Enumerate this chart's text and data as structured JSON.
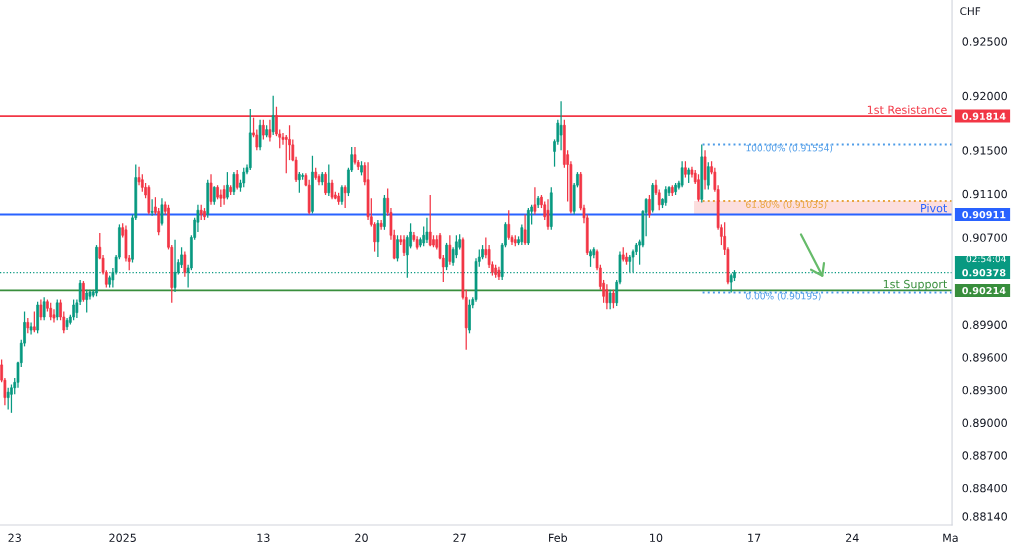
{
  "chart_data": {
    "type": "candlestick",
    "ylabel": "CHF",
    "categories": [
      null,
      null,
      null,
      null,
      "23",
      null,
      null,
      null,
      null,
      null,
      null,
      null,
      null,
      null,
      null,
      null,
      null,
      null,
      null,
      null,
      null,
      null,
      null,
      null,
      null,
      null,
      null,
      null,
      null,
      null,
      null,
      null,
      null,
      null,
      null,
      null,
      null,
      "2025",
      null,
      null,
      null,
      null,
      null,
      null,
      null,
      null,
      null,
      null,
      null,
      null,
      null,
      null,
      null,
      null,
      null,
      null,
      null,
      null,
      null,
      null,
      null,
      null,
      null,
      null,
      null,
      null,
      null,
      null,
      null,
      null,
      null,
      null,
      null,
      null,
      null,
      null,
      null,
      null,
      null,
      null,
      "13",
      null,
      null,
      null,
      null,
      null,
      null,
      null,
      null,
      null,
      null,
      null,
      null,
      null,
      null,
      null,
      null,
      null,
      null,
      null,
      null,
      null,
      null,
      null,
      null,
      null,
      null,
      null,
      null,
      null,
      "20",
      null,
      null,
      null,
      null,
      null,
      null,
      null,
      null,
      null,
      null,
      null,
      null,
      null,
      null,
      null,
      null,
      null,
      null,
      null,
      null,
      null,
      null,
      null,
      null,
      null,
      null,
      null,
      null,
      null,
      "27",
      null,
      null,
      null,
      null,
      null,
      null,
      null,
      null,
      null,
      null,
      null,
      null,
      null,
      null,
      null,
      null,
      null,
      null,
      null,
      null,
      null,
      null,
      null,
      null,
      null,
      null,
      null,
      null,
      null,
      "Feb",
      null,
      null,
      null,
      null,
      null,
      null,
      null,
      null,
      null,
      null,
      null,
      null,
      null,
      null,
      null,
      null,
      null,
      null,
      null,
      null,
      null,
      null,
      null,
      null,
      null,
      null,
      null,
      null,
      null,
      "10",
      null,
      null,
      null,
      null,
      null,
      null,
      null,
      null,
      null,
      null,
      null,
      null,
      null,
      null,
      null,
      null,
      null,
      null,
      null,
      null,
      null,
      null,
      null,
      null,
      null,
      null,
      null,
      null,
      null,
      "17",
      null,
      null,
      null,
      null,
      null,
      null,
      null,
      null,
      null,
      null,
      null,
      null,
      null,
      null,
      null,
      null,
      null,
      null,
      null,
      null,
      null,
      null,
      null,
      null,
      null,
      null,
      null,
      null,
      null,
      "24",
      null,
      null,
      null,
      null,
      null,
      null,
      null,
      null,
      null,
      null,
      null,
      null,
      null,
      null,
      null,
      null,
      null,
      null,
      null,
      null,
      null,
      null,
      null,
      null,
      null,
      null,
      null,
      null,
      null,
      "Ma"
    ],
    "ohlc": [
      [
        0.8953,
        0.8958,
        0.8937,
        0.8939
      ],
      [
        0.8939,
        0.8941,
        0.8916,
        0.8923
      ],
      [
        0.8923,
        0.8932,
        0.8912,
        0.8928
      ],
      [
        0.8926,
        0.8935,
        0.8909,
        0.8932
      ],
      [
        0.8932,
        0.8941,
        0.8926,
        0.8937
      ],
      [
        0.8937,
        0.8956,
        0.8932,
        0.8955
      ],
      [
        0.8955,
        0.8976,
        0.8951,
        0.8973
      ],
      [
        0.8973,
        0.9002,
        0.897,
        0.8992
      ],
      [
        0.8992,
        0.8996,
        0.8982,
        0.8987
      ],
      [
        0.8985,
        0.8992,
        0.8981,
        0.8988
      ],
      [
        0.8988,
        0.9002,
        0.8983,
        0.8985
      ],
      [
        0.8985,
        0.9011,
        0.8982,
        0.9008
      ],
      [
        0.9008,
        0.9013,
        0.8994,
        0.8997
      ],
      [
        0.8997,
        0.9015,
        0.8994,
        0.9011
      ],
      [
        0.9011,
        0.9013,
        0.9002,
        0.9005
      ],
      [
        0.9005,
        0.901,
        0.8994,
        0.8997
      ],
      [
        0.8999,
        0.9004,
        0.8992,
        0.8996
      ],
      [
        0.8997,
        0.9013,
        0.8994,
        0.901
      ],
      [
        0.901,
        0.9013,
        0.8994,
        0.8997
      ],
      [
        0.8997,
        0.9002,
        0.8982,
        0.8985
      ],
      [
        0.8988,
        0.8996,
        0.8985,
        0.8994
      ],
      [
        0.8992,
        0.8999,
        0.899,
        0.8997
      ],
      [
        0.8997,
        0.9013,
        0.8994,
        0.9008
      ],
      [
        0.9001,
        0.9013,
        0.8996,
        0.901
      ],
      [
        0.9011,
        0.9031,
        0.9008,
        0.9028
      ],
      [
        0.9028,
        0.903,
        0.9011,
        0.9013
      ],
      [
        0.9013,
        0.9022,
        0.9001,
        0.9019
      ],
      [
        0.9016,
        0.9022,
        0.9013,
        0.902
      ],
      [
        0.9017,
        0.9022,
        0.9015,
        0.902
      ],
      [
        0.9019,
        0.9063,
        0.9016,
        0.9061
      ],
      [
        0.9061,
        0.9074,
        0.905,
        0.9051
      ],
      [
        0.9051,
        0.9054,
        0.9036,
        0.9038
      ],
      [
        0.9038,
        0.904,
        0.9024,
        0.9027
      ],
      [
        0.9027,
        0.9035,
        0.9024,
        0.9033
      ],
      [
        0.9031,
        0.9042,
        0.9024,
        0.9038
      ],
      [
        0.9038,
        0.9054,
        0.9036,
        0.9052
      ],
      [
        0.9052,
        0.9082,
        0.905,
        0.9079
      ],
      [
        0.9079,
        0.9083,
        0.907,
        0.9072
      ],
      [
        0.9077,
        0.9081,
        0.9048,
        0.9051
      ],
      [
        0.9051,
        0.9054,
        0.904,
        0.9048
      ],
      [
        0.905,
        0.9091,
        0.9047,
        0.9088
      ],
      [
        0.9088,
        0.9137,
        0.9086,
        0.9125
      ],
      [
        0.9125,
        0.9135,
        0.9118,
        0.9121
      ],
      [
        0.9123,
        0.9128,
        0.9112,
        0.9116
      ],
      [
        0.9116,
        0.912,
        0.9106,
        0.9109
      ],
      [
        0.9116,
        0.9118,
        0.9091,
        0.9093
      ],
      [
        0.9093,
        0.9105,
        0.909,
        0.9094
      ],
      [
        0.9098,
        0.9107,
        0.9091,
        0.9093
      ],
      [
        0.9094,
        0.9097,
        0.9072,
        0.9075
      ],
      [
        0.9083,
        0.9106,
        0.9081,
        0.91
      ],
      [
        0.91,
        0.9103,
        0.9091,
        0.9094
      ],
      [
        0.9097,
        0.91,
        0.9059,
        0.9061
      ],
      [
        0.9061,
        0.9063,
        0.901,
        0.9024
      ],
      [
        0.9024,
        0.9068,
        0.902,
        0.9038
      ],
      [
        0.9038,
        0.905,
        0.9036,
        0.9047
      ],
      [
        0.9045,
        0.9061,
        0.9042,
        0.9054
      ],
      [
        0.9054,
        0.9057,
        0.9034,
        0.9038
      ],
      [
        0.9038,
        0.9045,
        0.9024,
        0.9042
      ],
      [
        0.9042,
        0.9072,
        0.904,
        0.907
      ],
      [
        0.907,
        0.9088,
        0.9068,
        0.9086
      ],
      [
        0.9084,
        0.91,
        0.9075,
        0.9095
      ],
      [
        0.9095,
        0.91,
        0.9086,
        0.9091
      ],
      [
        0.9094,
        0.9097,
        0.9086,
        0.9089
      ],
      [
        0.9091,
        0.9123,
        0.9088,
        0.912
      ],
      [
        0.912,
        0.9128,
        0.91,
        0.9103
      ],
      [
        0.9103,
        0.9117,
        0.91,
        0.9116
      ],
      [
        0.9116,
        0.9118,
        0.9105,
        0.9107
      ],
      [
        0.9109,
        0.9114,
        0.9098,
        0.9106
      ],
      [
        0.9114,
        0.9118,
        0.91,
        0.9106
      ],
      [
        0.9107,
        0.913,
        0.9105,
        0.9118
      ],
      [
        0.9116,
        0.9118,
        0.9109,
        0.9112
      ],
      [
        0.9112,
        0.913,
        0.9109,
        0.9128
      ],
      [
        0.9128,
        0.9132,
        0.9114,
        0.9116
      ],
      [
        0.9116,
        0.9123,
        0.9112,
        0.912
      ],
      [
        0.912,
        0.9134,
        0.9116,
        0.913
      ],
      [
        0.913,
        0.9137,
        0.9128,
        0.9134
      ],
      [
        0.9134,
        0.9188,
        0.9132,
        0.9166
      ],
      [
        0.9166,
        0.918,
        0.9162,
        0.9164
      ],
      [
        0.9164,
        0.9169,
        0.915,
        0.9153
      ],
      [
        0.9153,
        0.9178,
        0.915,
        0.9173
      ],
      [
        0.9173,
        0.9178,
        0.916,
        0.9164
      ],
      [
        0.9164,
        0.9173,
        0.9162,
        0.9169
      ],
      [
        0.9169,
        0.9178,
        0.9158,
        0.9162
      ],
      [
        0.9167,
        0.92,
        0.9164,
        0.9182
      ],
      [
        0.9182,
        0.919,
        0.9163,
        0.9165
      ],
      [
        0.9165,
        0.9169,
        0.9152,
        0.9162
      ],
      [
        0.9162,
        0.9166,
        0.9155,
        0.916
      ],
      [
        0.9162,
        0.9164,
        0.9129,
        0.916
      ],
      [
        0.916,
        0.9173,
        0.9141,
        0.9155
      ],
      [
        0.9155,
        0.916,
        0.914,
        0.9141
      ],
      [
        0.9141,
        0.9144,
        0.9121,
        0.9123
      ],
      [
        0.9123,
        0.913,
        0.9111,
        0.9128
      ],
      [
        0.9126,
        0.9129,
        0.9123,
        0.9127
      ],
      [
        0.9127,
        0.9129,
        0.9117,
        0.9118
      ],
      [
        0.9118,
        0.9123,
        0.9091,
        0.9093
      ],
      [
        0.9094,
        0.9145,
        0.9092,
        0.913
      ],
      [
        0.913,
        0.9134,
        0.9123,
        0.9125
      ],
      [
        0.9126,
        0.9128,
        0.9118,
        0.9121
      ],
      [
        0.9121,
        0.913,
        0.9118,
        0.9128
      ],
      [
        0.9128,
        0.913,
        0.9109,
        0.9111
      ],
      [
        0.9111,
        0.9137,
        0.9108,
        0.912
      ],
      [
        0.912,
        0.9123,
        0.9105,
        0.9107
      ],
      [
        0.9109,
        0.9112,
        0.9105,
        0.9106
      ],
      [
        0.9108,
        0.9111,
        0.91,
        0.9103
      ],
      [
        0.9103,
        0.9118,
        0.91,
        0.9116
      ],
      [
        0.9116,
        0.9118,
        0.9097,
        0.9111
      ],
      [
        0.9111,
        0.9134,
        0.9108,
        0.9132
      ],
      [
        0.9132,
        0.9153,
        0.913,
        0.9146
      ],
      [
        0.9146,
        0.9153,
        0.9137,
        0.9139
      ],
      [
        0.9139,
        0.9141,
        0.9132,
        0.9135
      ],
      [
        0.913,
        0.914,
        0.9127,
        0.9136
      ],
      [
        0.9136,
        0.9139,
        0.9118,
        0.9121
      ],
      [
        0.9123,
        0.9139,
        0.9086,
        0.9089
      ],
      [
        0.9089,
        0.9106,
        0.908,
        0.9082
      ],
      [
        0.9082,
        0.9084,
        0.9057,
        0.9066
      ],
      [
        0.9066,
        0.9086,
        0.9052,
        0.9083
      ],
      [
        0.9083,
        0.9086,
        0.9077,
        0.908
      ],
      [
        0.908,
        0.9109,
        0.9077,
        0.9106
      ],
      [
        0.9106,
        0.9115,
        0.909,
        0.9093
      ],
      [
        0.9093,
        0.9097,
        0.9068,
        0.9072
      ],
      [
        0.9072,
        0.9077,
        0.905,
        0.9051
      ],
      [
        0.9051,
        0.9072,
        0.9048,
        0.9068
      ],
      [
        0.9068,
        0.9072,
        0.9063,
        0.9066
      ],
      [
        0.9068,
        0.9072,
        0.9053,
        0.9056
      ],
      [
        0.9054,
        0.9072,
        0.9033,
        0.907
      ],
      [
        0.9062,
        0.9083,
        0.906,
        0.9075
      ],
      [
        0.9072,
        0.9075,
        0.9066,
        0.9068
      ],
      [
        0.9068,
        0.9071,
        0.9059,
        0.9061
      ],
      [
        0.9063,
        0.907,
        0.9061,
        0.9068
      ],
      [
        0.9065,
        0.908,
        0.9062,
        0.9072
      ],
      [
        0.9068,
        0.9088,
        0.9065,
        0.9075
      ],
      [
        0.9075,
        0.9109,
        0.9062,
        0.9063
      ],
      [
        0.9068,
        0.9072,
        0.9061,
        0.9063
      ],
      [
        0.9068,
        0.9072,
        0.9059,
        0.9061
      ],
      [
        0.9072,
        0.9074,
        0.905,
        0.9051
      ],
      [
        0.9051,
        0.9054,
        0.9029,
        0.9043
      ],
      [
        0.9043,
        0.9065,
        0.904,
        0.9063
      ],
      [
        0.9063,
        0.9072,
        0.9045,
        0.9048
      ],
      [
        0.9047,
        0.9061,
        0.9044,
        0.9059
      ],
      [
        0.9054,
        0.9072,
        0.9051,
        0.9066
      ],
      [
        0.9061,
        0.9073,
        0.9059,
        0.9068
      ],
      [
        0.9068,
        0.907,
        0.9013,
        0.9015
      ],
      [
        0.9015,
        0.9022,
        0.8967,
        0.8987
      ],
      [
        0.8985,
        0.9013,
        0.8982,
        0.9008
      ],
      [
        0.9008,
        0.9015,
        0.9005,
        0.9013
      ],
      [
        0.9013,
        0.9051,
        0.9011,
        0.9048
      ],
      [
        0.9048,
        0.9059,
        0.9043,
        0.9052
      ],
      [
        0.9052,
        0.9063,
        0.905,
        0.9059
      ],
      [
        0.9059,
        0.907,
        0.9051,
        0.9054
      ],
      [
        0.9059,
        0.9063,
        0.9042,
        0.9045
      ],
      [
        0.9045,
        0.9048,
        0.9035,
        0.9038
      ],
      [
        0.9042,
        0.9045,
        0.9033,
        0.9036
      ],
      [
        0.904,
        0.9043,
        0.9031,
        0.9034
      ],
      [
        0.9034,
        0.9065,
        0.9031,
        0.9063
      ],
      [
        0.9063,
        0.9084,
        0.9061,
        0.9082
      ],
      [
        0.9082,
        0.9095,
        0.9068,
        0.907
      ],
      [
        0.907,
        0.9072,
        0.9063,
        0.9066
      ],
      [
        0.9068,
        0.9072,
        0.9062,
        0.9065
      ],
      [
        0.9065,
        0.9071,
        0.9063,
        0.9068
      ],
      [
        0.9066,
        0.9082,
        0.9063,
        0.9079
      ],
      [
        0.9077,
        0.9091,
        0.9063,
        0.9065
      ],
      [
        0.9065,
        0.9097,
        0.9063,
        0.9095
      ],
      [
        0.9094,
        0.91,
        0.9082,
        0.9098
      ],
      [
        0.91,
        0.9116,
        0.9091,
        0.9094
      ],
      [
        0.91,
        0.9108,
        0.9097,
        0.9106
      ],
      [
        0.9107,
        0.9109,
        0.9097,
        0.91
      ],
      [
        0.91,
        0.9103,
        0.9086,
        0.9089
      ],
      [
        0.9095,
        0.9105,
        0.9077,
        0.908
      ],
      [
        0.908,
        0.9116,
        0.9077,
        0.9111
      ],
      [
        0.9149,
        0.916,
        0.9135,
        0.9158
      ],
      [
        0.9158,
        0.9178,
        0.9155,
        0.9175
      ],
      [
        0.9164,
        0.9195,
        0.915,
        0.9173
      ],
      [
        0.9173,
        0.9178,
        0.9134,
        0.9137
      ],
      [
        0.9146,
        0.915,
        0.9103,
        0.9137
      ],
      [
        0.9137,
        0.914,
        0.9092,
        0.9094
      ],
      [
        0.9094,
        0.912,
        0.9091,
        0.9118
      ],
      [
        0.9118,
        0.913,
        0.9116,
        0.9128
      ],
      [
        0.9128,
        0.913,
        0.9095,
        0.9097
      ],
      [
        0.9097,
        0.91,
        0.9083,
        0.9088
      ],
      [
        0.9088,
        0.9091,
        0.9054,
        0.9056
      ],
      [
        0.9053,
        0.9059,
        0.9043,
        0.9057
      ],
      [
        0.9054,
        0.9061,
        0.9051,
        0.9059
      ],
      [
        0.9057,
        0.9059,
        0.904,
        0.9042
      ],
      [
        0.9042,
        0.9045,
        0.9022,
        0.9025
      ],
      [
        0.9028,
        0.9031,
        0.901,
        0.9016
      ],
      [
        0.9022,
        0.9027,
        0.9004,
        0.901
      ],
      [
        0.901,
        0.9022,
        0.9004,
        0.9019
      ],
      [
        0.9019,
        0.9022,
        0.9005,
        0.901
      ],
      [
        0.901,
        0.9031,
        0.9007,
        0.9029
      ],
      [
        0.9029,
        0.9057,
        0.9027,
        0.9054
      ],
      [
        0.9054,
        0.9061,
        0.9048,
        0.905
      ],
      [
        0.9052,
        0.9056,
        0.9045,
        0.9048
      ],
      [
        0.9048,
        0.9054,
        0.9038,
        0.9052
      ],
      [
        0.9052,
        0.9059,
        0.9038,
        0.9057
      ],
      [
        0.9057,
        0.9065,
        0.9054,
        0.9063
      ],
      [
        0.9063,
        0.9068,
        0.9045,
        0.9066
      ],
      [
        0.9063,
        0.9095,
        0.9061,
        0.9094
      ],
      [
        0.9093,
        0.9106,
        0.9071,
        0.9105
      ],
      [
        0.9105,
        0.9109,
        0.9088,
        0.9091
      ],
      [
        0.9095,
        0.912,
        0.9093,
        0.9118
      ],
      [
        0.9118,
        0.9123,
        0.9109,
        0.9111
      ],
      [
        0.9111,
        0.9114,
        0.9095,
        0.91
      ],
      [
        0.91,
        0.9106,
        0.9097,
        0.9105
      ],
      [
        0.9102,
        0.9117,
        0.9099,
        0.9114
      ],
      [
        0.9111,
        0.9117,
        0.9108,
        0.9116
      ],
      [
        0.9116,
        0.9118,
        0.9108,
        0.9111
      ],
      [
        0.9112,
        0.912,
        0.9109,
        0.9118
      ],
      [
        0.9116,
        0.9122,
        0.9114,
        0.912
      ],
      [
        0.9118,
        0.914,
        0.9116,
        0.9134
      ],
      [
        0.9134,
        0.914,
        0.9125,
        0.9128
      ],
      [
        0.9128,
        0.9134,
        0.912,
        0.9132
      ],
      [
        0.9132,
        0.9135,
        0.9125,
        0.9128
      ],
      [
        0.9129,
        0.9132,
        0.9119,
        0.9121
      ],
      [
        0.9123,
        0.9128,
        0.9103,
        0.9105
      ],
      [
        0.9105,
        0.91554,
        0.9102,
        0.9144
      ],
      [
        0.9144,
        0.915,
        0.9114,
        0.9123
      ],
      [
        0.9118,
        0.9139,
        0.9114,
        0.9135
      ],
      [
        0.9135,
        0.914,
        0.9128,
        0.913
      ],
      [
        0.913,
        0.9134,
        0.9112,
        0.9114
      ],
      [
        0.9114,
        0.9118,
        0.9077,
        0.9079
      ],
      [
        0.9079,
        0.9082,
        0.9063,
        0.9071
      ],
      [
        0.9071,
        0.9084,
        0.9054,
        0.9059
      ],
      [
        0.9059,
        0.9061,
        0.9027,
        0.9029
      ],
      [
        0.9029,
        0.9037,
        0.90195,
        0.9035
      ],
      [
        0.9033,
        0.904,
        0.903,
        0.90378
      ],
      null,
      null,
      null,
      null,
      null,
      null,
      null,
      null,
      null,
      null,
      null,
      null,
      null,
      null,
      null,
      null,
      null,
      null,
      null,
      null,
      null,
      null,
      null,
      null,
      null,
      null,
      null,
      null,
      null,
      null,
      null,
      null,
      null,
      null,
      null,
      null,
      null,
      null,
      null,
      null,
      null,
      null,
      null,
      null,
      null,
      null,
      null,
      null,
      null,
      null,
      null,
      null,
      null,
      null,
      null,
      null,
      null,
      null,
      null,
      null,
      null,
      null,
      null,
      null,
      null,
      null
    ],
    "colors": [
      "#f23645",
      "#f23645",
      "#089981",
      "#089981",
      "#089981",
      "#089981",
      "#089981",
      "#089981",
      "#f23645",
      "#089981",
      "#f23645",
      "#089981",
      "#f23645",
      "#089981",
      "#f23645",
      "#f23645",
      "#f23645",
      "#089981",
      "#f23645",
      "#f23645",
      "#089981",
      "#089981",
      "#089981",
      "#089981",
      "#089981",
      "#f23645",
      "#089981",
      "#089981",
      "#089981",
      "#089981",
      "#f23645",
      "#f23645",
      "#f23645",
      "#089981",
      "#089981",
      "#089981",
      "#089981",
      "#f23645",
      "#f23645",
      "#f23645",
      "#089981",
      "#089981",
      "#f23645",
      "#f23645",
      "#f23645",
      "#f23645",
      "#089981",
      "#f23645",
      "#f23645",
      "#089981",
      "#f23645",
      "#f23645",
      "#f23645",
      "#089981",
      "#089981",
      "#089981",
      "#f23645",
      "#089981",
      "#089981",
      "#089981",
      "#089981",
      "#f23645",
      "#f23645",
      "#089981",
      "#f23645",
      "#089981",
      "#f23645",
      "#f23645",
      "#f23645",
      "#089981",
      "#f23645",
      "#089981",
      "#f23645",
      "#089981",
      "#089981",
      "#089981",
      "#089981",
      "#f23645",
      "#f23645",
      "#089981",
      "#f23645",
      "#089981",
      "#f23645",
      "#089981",
      "#f23645",
      "#f23645",
      "#f23645",
      "#f23645",
      "#f23645",
      "#f23645",
      "#f23645",
      "#089981",
      "#089981",
      "#f23645",
      "#f23645",
      "#089981",
      "#f23645",
      "#f23645",
      "#089981",
      "#f23645",
      "#089981",
      "#f23645",
      "#f23645",
      "#f23645",
      "#089981",
      "#f23645",
      "#089981",
      "#089981",
      "#f23645",
      "#f23645",
      "#089981",
      "#f23645",
      "#f23645",
      "#f23645",
      "#f23645",
      "#089981",
      "#f23645",
      "#089981",
      "#f23645",
      "#f23645",
      "#f23645",
      "#089981",
      "#f23645",
      "#f23645",
      "#089981",
      "#089981",
      "#f23645",
      "#f23645",
      "#089981",
      "#089981",
      "#089981",
      "#f23645",
      "#f23645",
      "#f23645",
      "#f23645",
      "#f23645",
      "#089981",
      "#f23645",
      "#089981",
      "#089981",
      "#089981",
      "#f23645",
      "#f23645",
      "#089981",
      "#089981",
      "#089981",
      "#089981",
      "#089981",
      "#f23645",
      "#f23645",
      "#f23645",
      "#f23645",
      "#f23645",
      "#089981",
      "#089981",
      "#f23645",
      "#f23645",
      "#f23645",
      "#089981",
      "#089981",
      "#f23645",
      "#089981",
      "#089981",
      "#f23645",
      "#089981",
      "#f23645",
      "#f23645",
      "#f23645",
      "#089981",
      "#089981",
      "#089981",
      "#089981",
      "#f23645",
      "#f23645",
      "#f23645",
      "#089981",
      "#089981",
      "#f23645",
      "#f23645",
      "#f23645",
      "#089981",
      "#089981",
      "#f23645",
      "#f23645",
      "#f23645",
      "#f23645",
      "#089981",
      "#f23645",
      "#089981",
      "#089981",
      "#f23645",
      "#f23645",
      "#089981",
      "#089981",
      "#089981",
      "#089981",
      "#089981",
      "#089981",
      "#f23645",
      "#089981",
      "#f23645",
      "#f23645",
      "#089981",
      "#089981",
      "#089981",
      "#f23645",
      "#089981",
      "#089981",
      "#089981",
      "#f23645",
      "#089981",
      "#f23645",
      "#f23645",
      "#f23645",
      "#089981",
      "#f23645",
      "#089981",
      "#f23645",
      "#f23645",
      "#f23645",
      "#f23645",
      "#f23645",
      "#f23645",
      "#089981",
      "#089981",
      null,
      null,
      null,
      null,
      null,
      null,
      null,
      null,
      null,
      null,
      null,
      null,
      null,
      null,
      null,
      null,
      null,
      null,
      null,
      null,
      null,
      null,
      null,
      null,
      null,
      null,
      null,
      null,
      null,
      null,
      null,
      null,
      null,
      null,
      null,
      null,
      null,
      null,
      null,
      null,
      null,
      null,
      null,
      null,
      null,
      null,
      null,
      null,
      null,
      null,
      null,
      null,
      null,
      null,
      null,
      null,
      null,
      null,
      null,
      null,
      null,
      null,
      null,
      null,
      null,
      null
    ],
    "ylim": [
      0.8806,
      0.9288
    ],
    "yticks": [
      {
        "value": 0.925,
        "label": "0.92500"
      },
      {
        "value": 0.92,
        "label": "0.92000"
      },
      {
        "value": 0.91814,
        "label": "0.91814"
      },
      {
        "value": 0.915,
        "label": "0.91500"
      },
      {
        "value": 0.911,
        "label": "0.91100"
      },
      {
        "value": 0.90911,
        "label": "0.90911"
      },
      {
        "value": 0.907,
        "label": "0.90700"
      },
      {
        "value": 0.90378,
        "label": "0.90378"
      },
      {
        "value": 0.90214,
        "label": "0.90214"
      },
      {
        "value": 0.899,
        "label": "0.89900"
      },
      {
        "value": 0.896,
        "label": "0.89600"
      },
      {
        "value": 0.893,
        "label": "0.89300"
      },
      {
        "value": 0.89,
        "label": "0.89000"
      },
      {
        "value": 0.887,
        "label": "0.88700"
      },
      {
        "value": 0.884,
        "label": "0.88400"
      },
      {
        "value": 0.8814,
        "label": "0.88140"
      }
    ],
    "ref_lines": [
      {
        "axis": "y",
        "value": 0.91814,
        "label": "1st Resistance",
        "color": "#f23645"
      },
      {
        "axis": "y",
        "value": 0.90911,
        "label": "Pivot",
        "color": "#2962ff"
      },
      {
        "axis": "y",
        "value": 0.90214,
        "label": "1st Support",
        "color": "#388e3c"
      },
      {
        "axis": "y",
        "value": 0.90378,
        "color": "#089981",
        "line_style": "dotted"
      },
      {
        "axis": "y",
        "value": 0.91554,
        "label": "100.00% (0.91554)",
        "color": "#4c9be8",
        "line_style": "dotted"
      },
      {
        "axis": "y",
        "value": 0.91035,
        "label": "61.80% (0.91035)",
        "color": "#e8a33d",
        "line_style": "dotted"
      },
      {
        "axis": "y",
        "value": 0.90195,
        "label": "0.00% (0.90195)",
        "color": "#4c9be8",
        "line_style": "dotted"
      }
    ],
    "bands": [
      {
        "axis": "y",
        "from": 0.90911,
        "to": 0.91035,
        "color": "#fcdede"
      }
    ],
    "annotations": [
      "02:54:04"
    ]
  }
}
